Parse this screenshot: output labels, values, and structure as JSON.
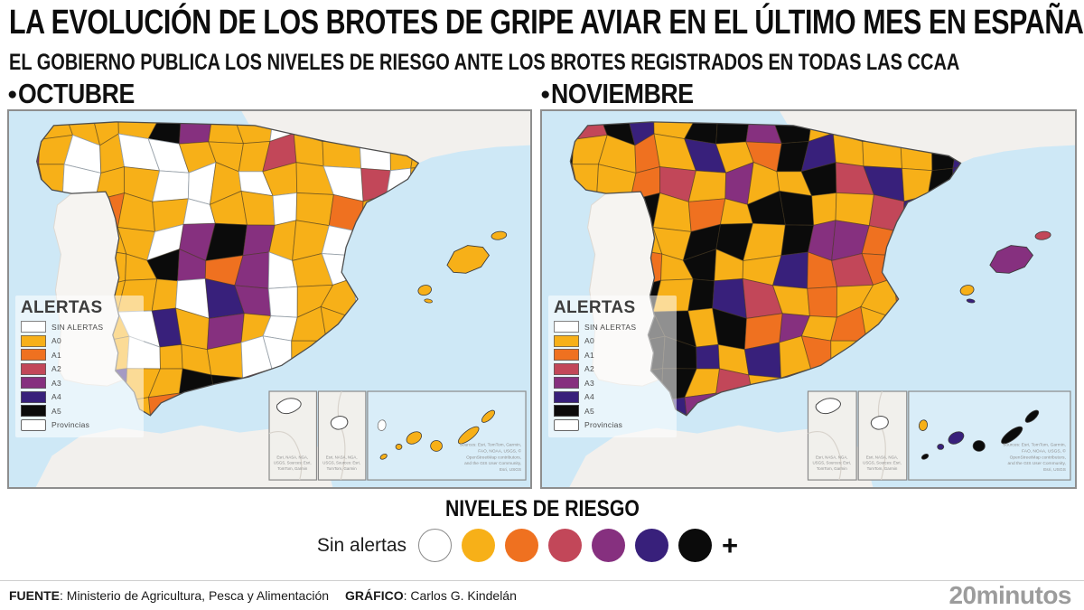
{
  "header": {
    "title": "LA EVOLUCIÓN DE LOS BROTES DE GRIPE AVIAR EN EL ÚLTIMO MES EN ESPAÑA",
    "subtitle": "EL GOBIERNO PUBLICA LOS NIVELES DE RIESGO ANTE LOS BROTES REGISTRADOS EN TODAS LAS CCAA"
  },
  "palette": {
    "W": "#FFFFFF",
    "0": "#F7B018",
    "1": "#EF7120",
    "2": "#C24759",
    "3": "#86307F",
    "4": "#38207B",
    "5": "#0B0B0B",
    "sea": "#CEE8F6",
    "land": "#F2F0ED",
    "outline": "#4d4d4d"
  },
  "map_legend": {
    "title": "ALERTAS",
    "items": [
      {
        "code": "W",
        "label": "SIN ALERTAS"
      },
      {
        "code": "0",
        "label": "A0"
      },
      {
        "code": "1",
        "label": "A1"
      },
      {
        "code": "2",
        "label": "A2"
      },
      {
        "code": "3",
        "label": "A3"
      },
      {
        "code": "4",
        "label": "A4"
      },
      {
        "code": "5",
        "label": "A5"
      },
      {
        "code": "P",
        "label": "Provincias"
      }
    ]
  },
  "maps": [
    {
      "id": "octubre",
      "bullet": "●",
      "label": "OCTUBRE",
      "cells": [
        "200005300W00001000",
        "30W0WW000200W00200",
        "20W00WW0W00W2W0020",
        "000100W00W010W0100",
        "00000W35300W002000",
        "000005313W0W200000",
        "011000W43W00W20000",
        "0010W4030W00000000",
        "0030W000WW00000000",
        "0134005530W0000000",
        "554301034000000000",
        "055430030000000000",
        "000000000000000000"
      ],
      "balearics": {
        "mallorca": "0",
        "menorca": "0",
        "ibiza": "0",
        "formentera": "0"
      },
      "canaries": [
        "W",
        "0",
        "0",
        "0",
        "0",
        "0",
        "0"
      ]
    },
    {
      "id": "noviembre",
      "bullet": "●",
      "label": "NOVIEMBRE",
      "cells": [
        "525405535055045500",
        "500104015400054235",
        "200120300524054320",
        "003501055002400130",
        "431005505331004020",
        "205105004121000243",
        "345505420100120000",
        "105550513010302000",
        "315554040100010000",
        "035550203000000000",
        "555543010020000000",
        "555450300000000000",
        "050000000000000000"
      ],
      "balearics": {
        "mallorca": "3",
        "menorca": "2",
        "ibiza": "0",
        "formentera": "4"
      },
      "canaries": [
        "0",
        "5",
        "4",
        "4",
        "5",
        "5",
        "5"
      ]
    }
  ],
  "attribution": {
    "small": [
      "Esri, NASA, NGA,",
      "USGS, Sources: Esri,",
      "TomTom, Garmin"
    ],
    "canary": [
      "Sources: Esri, TomTom, Garmin,",
      "FAO, NOAA, USGS, ©",
      "OpenStreetMap contributors,",
      "and the GIS User Community,",
      "Esri, USGS"
    ]
  },
  "risk_legend": {
    "title": "NIVELES DE RIESGO",
    "no_alert_label": "Sin alertas",
    "levels": [
      "W",
      "0",
      "1",
      "2",
      "3",
      "4",
      "5"
    ],
    "plus": "+"
  },
  "footer": {
    "source_label": "FUENTE",
    "source": ": Ministerio de Agricultura, Pesca y Alimentación",
    "credit_label": "GRÁFICO",
    "credit": ": Carlos G. Kindelán",
    "brand": "20minutos"
  }
}
